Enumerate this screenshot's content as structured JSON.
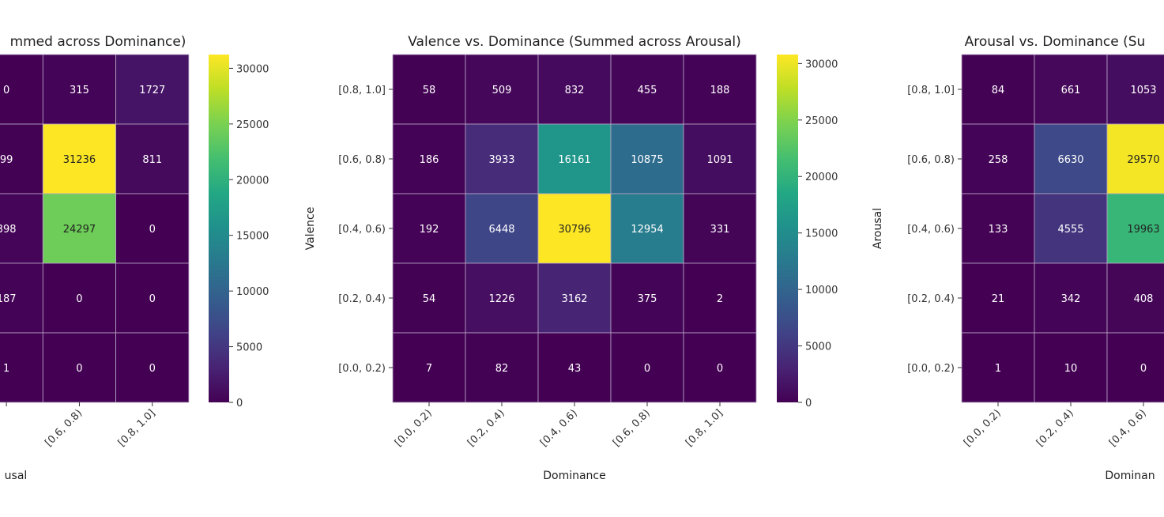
{
  "chart_data": [
    {
      "type": "heatmap",
      "title": "mmed across Dominance)",
      "xlabel": "usal",
      "ylabel": "",
      "x_categories": [
        "",
        "[0.6, 0.8)",
        "[0.8, 1.0]"
      ],
      "y_categories": [],
      "values": [
        [
          "0",
          "315",
          "1727"
        ],
        [
          "99",
          "31236",
          "811"
        ],
        [
          "398",
          "24297",
          "0"
        ],
        [
          "187",
          "0",
          "0"
        ],
        [
          "1",
          "0",
          "0"
        ]
      ],
      "zmin": 0,
      "zmax": 31236,
      "colormap": "viridis",
      "colorbar_ticks": [
        0,
        5000,
        10000,
        15000,
        20000,
        25000,
        30000
      ]
    },
    {
      "type": "heatmap",
      "title": "Valence vs. Dominance (Summed across Arousal)",
      "xlabel": "Dominance",
      "ylabel": "Valence",
      "x_categories": [
        "[0.0, 0.2)",
        "[0.2, 0.4)",
        "[0.4, 0.6)",
        "[0.6, 0.8)",
        "[0.8, 1.0]"
      ],
      "y_categories": [
        "[0.8, 1.0]",
        "[0.6, 0.8)",
        "[0.4, 0.6)",
        "[0.2, 0.4)",
        "[0.0, 0.2)"
      ],
      "values": [
        [
          "58",
          "509",
          "832",
          "455",
          "188"
        ],
        [
          "186",
          "3933",
          "16161",
          "10875",
          "1091"
        ],
        [
          "192",
          "6448",
          "30796",
          "12954",
          "331"
        ],
        [
          "54",
          "1226",
          "3162",
          "375",
          "2"
        ],
        [
          "7",
          "82",
          "43",
          "0",
          "0"
        ]
      ],
      "zmin": 0,
      "zmax": 30796,
      "colormap": "viridis",
      "colorbar_ticks": [
        0,
        5000,
        10000,
        15000,
        20000,
        25000,
        30000
      ]
    },
    {
      "type": "heatmap",
      "title": "Arousal vs. Dominance (Su",
      "xlabel": "Dominan",
      "ylabel": "Arousal",
      "x_categories": [
        "[0.0, 0.2)",
        "[0.2, 0.4)",
        "[0.4, 0.6)"
      ],
      "y_categories": [
        "[0.8, 1.0]",
        "[0.6, 0.8)",
        "[0.4, 0.6)",
        "[0.2, 0.4)",
        "[0.0, 0.2)"
      ],
      "values": [
        [
          "84",
          "661",
          "1053"
        ],
        [
          "258",
          "6630",
          "29570"
        ],
        [
          "133",
          "4555",
          "19963"
        ],
        [
          "21",
          "342",
          "408"
        ],
        [
          "1",
          "10",
          "0"
        ]
      ],
      "zmin": 0,
      "zmax": 30000,
      "colormap": "viridis"
    }
  ]
}
